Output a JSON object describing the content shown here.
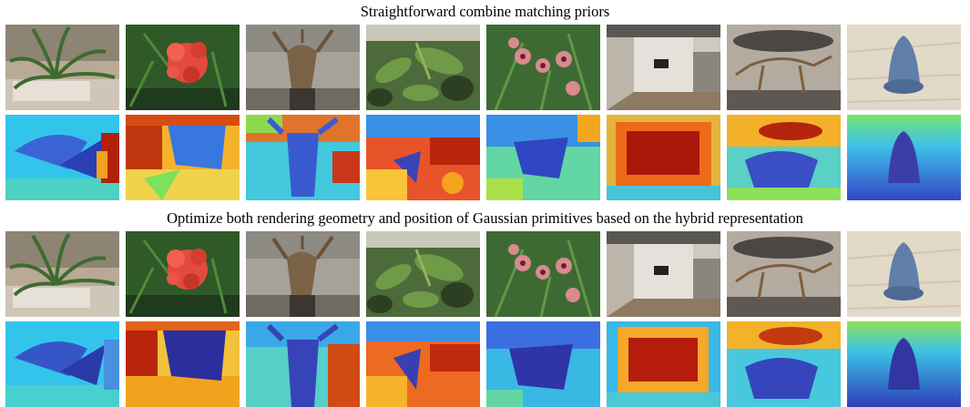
{
  "sections": [
    {
      "caption": "Straightforward combine matching priors"
    },
    {
      "caption": "Optimize both rendering geometry and position of Gaussian primitives based on the hybrid representation"
    }
  ],
  "scenes": [
    "fern",
    "flower",
    "horns",
    "leaves",
    "orchids",
    "room",
    "trex",
    "object"
  ],
  "colors": {
    "depth_far": "#2b2f9e",
    "depth_mid": "#3cc3e6",
    "depth_green": "#7fe05a",
    "depth_near": "#f2a21c",
    "depth_hot": "#b11a08"
  }
}
